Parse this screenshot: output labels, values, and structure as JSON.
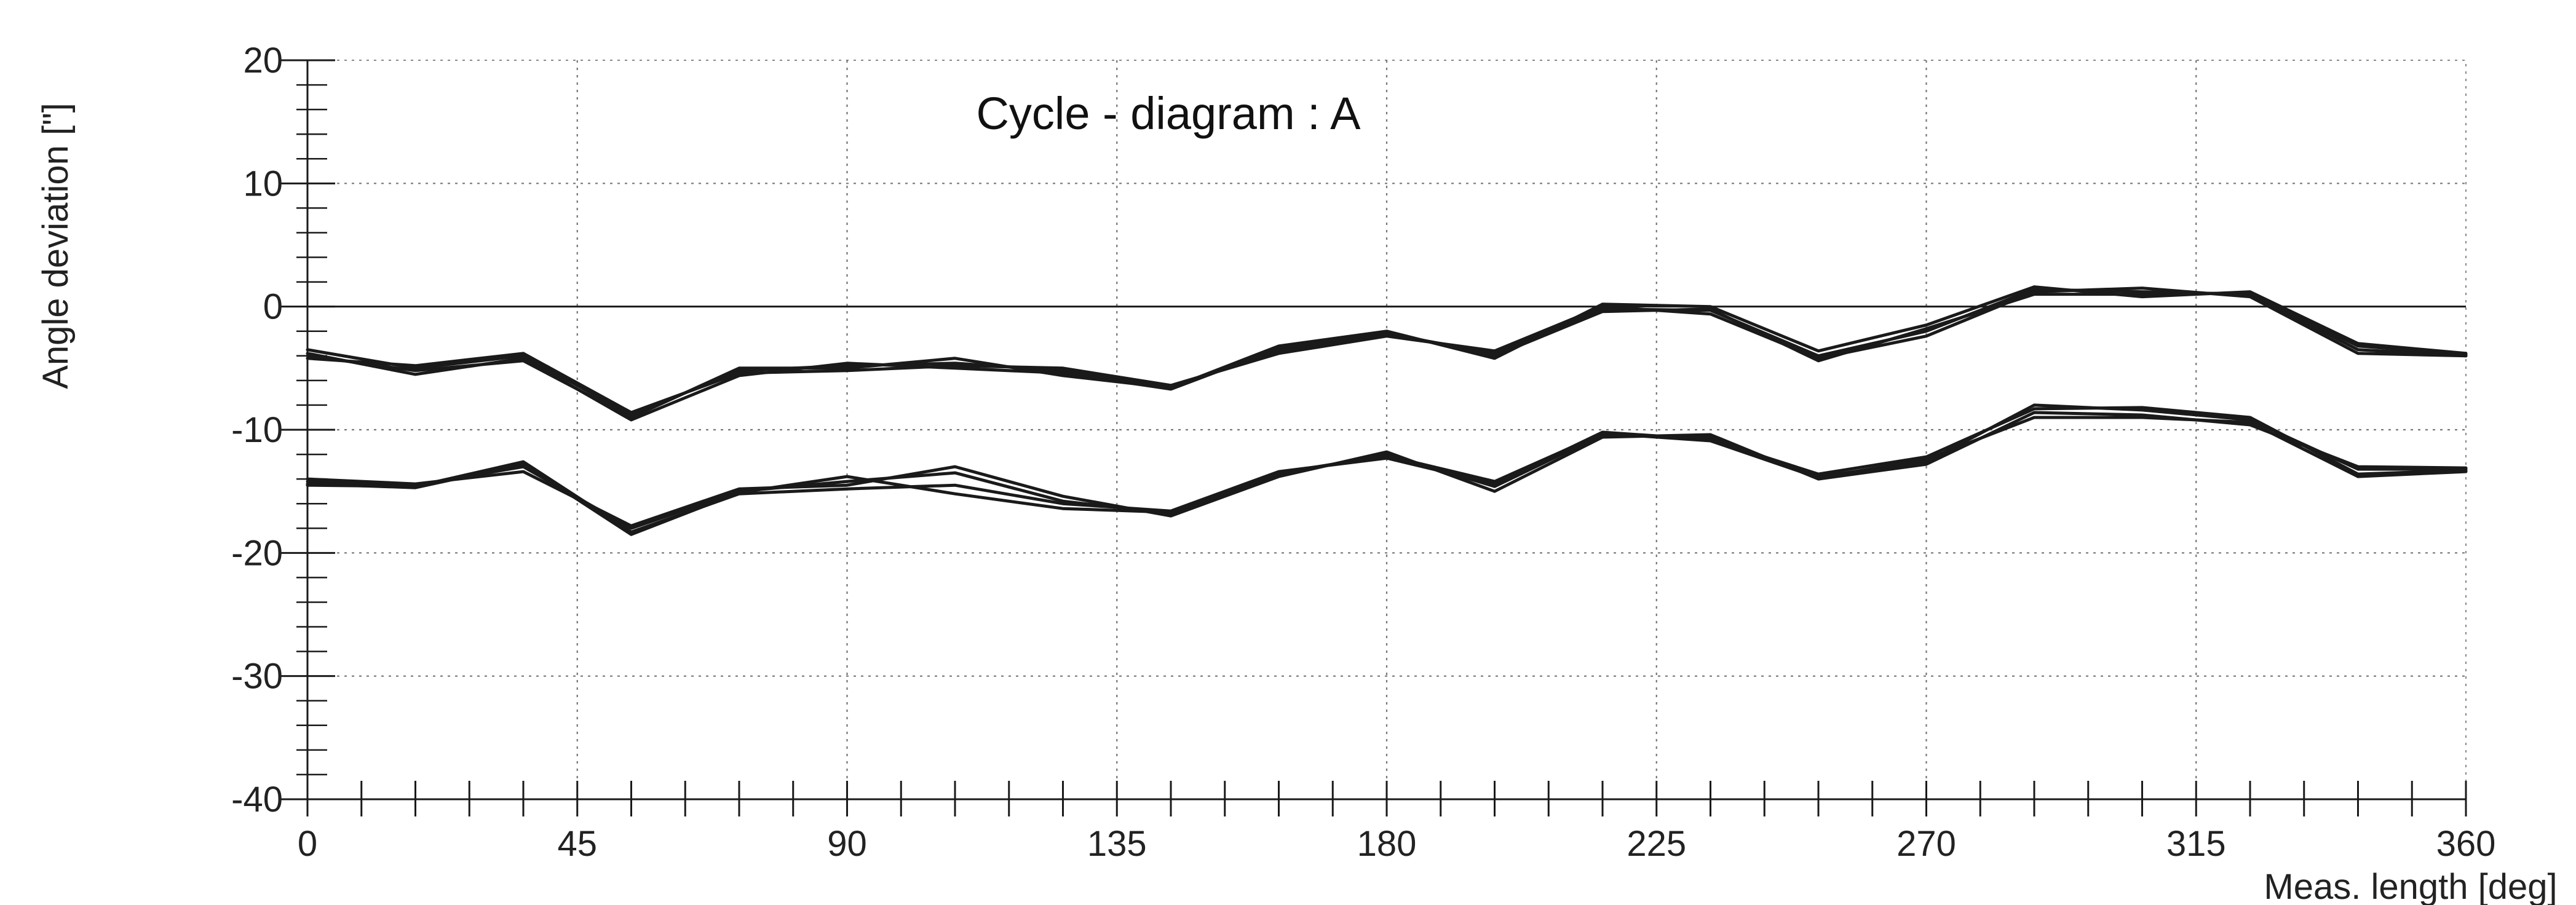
{
  "chart_data": {
    "type": "line",
    "title": "Cycle - diagram : A",
    "xlabel": "Meas. length  [deg]",
    "ylabel": "Angle deviation [\"]",
    "xlim": [
      0,
      360
    ],
    "ylim": [
      -40,
      20
    ],
    "xticks": [
      0,
      45,
      90,
      135,
      180,
      225,
      270,
      315,
      360
    ],
    "yticks": [
      20,
      10,
      0,
      -10,
      -20,
      -30,
      -40
    ],
    "grid": true,
    "zero_line": true,
    "x": [
      0,
      18,
      36,
      54,
      72,
      90,
      108,
      126,
      144,
      162,
      180,
      198,
      216,
      234,
      252,
      270,
      288,
      306,
      324,
      342,
      360
    ],
    "series": [
      {
        "values": [
          -3.5,
          -5.0,
          -4.0,
          -8.8,
          -5.2,
          -4.8,
          -4.6,
          -5.2,
          -6.5,
          -3.6,
          -2.2,
          -3.8,
          -0.2,
          -0.3,
          -4.0,
          -2.0,
          1.4,
          1.2,
          1.0,
          -3.5,
          -4.0
        ]
      },
      {
        "values": [
          -4.0,
          -5.2,
          -4.4,
          -9.0,
          -5.0,
          -5.0,
          -4.2,
          -5.6,
          -6.6,
          -3.2,
          -2.0,
          -4.2,
          0.2,
          0.0,
          -3.6,
          -1.5,
          1.6,
          0.8,
          1.2,
          -3.0,
          -3.8
        ]
      },
      {
        "values": [
          -4.2,
          -4.8,
          -3.8,
          -8.6,
          -5.4,
          -5.2,
          -4.8,
          -5.0,
          -6.4,
          -3.8,
          -2.4,
          -3.6,
          0.0,
          -0.6,
          -4.2,
          -2.4,
          1.2,
          1.5,
          0.8,
          -3.8,
          -4.0
        ]
      },
      {
        "values": [
          -3.8,
          -5.5,
          -4.2,
          -9.2,
          -5.6,
          -4.6,
          -5.0,
          -5.4,
          -6.7,
          -3.4,
          -2.1,
          -4.0,
          -0.4,
          -0.2,
          -4.4,
          -1.8,
          1.0,
          1.0,
          1.1,
          -3.2,
          -3.9
        ]
      },
      {
        "values": [
          -14.2,
          -14.5,
          -13.0,
          -18.0,
          -15.0,
          -14.2,
          -13.5,
          -15.8,
          -16.8,
          -13.6,
          -12.0,
          -14.6,
          -10.4,
          -10.6,
          -13.8,
          -12.6,
          -8.0,
          -8.4,
          -9.2,
          -13.2,
          -13.2
        ]
      },
      {
        "values": [
          -14.5,
          -14.6,
          -12.6,
          -18.3,
          -15.2,
          -14.8,
          -14.5,
          -16.0,
          -16.6,
          -13.4,
          -12.3,
          -14.4,
          -10.2,
          -10.8,
          -13.6,
          -12.2,
          -8.3,
          -8.2,
          -9.0,
          -13.6,
          -13.3
        ]
      },
      {
        "values": [
          -14.0,
          -14.4,
          -13.4,
          -17.8,
          -14.8,
          -14.5,
          -13.0,
          -15.4,
          -17.0,
          -13.8,
          -11.8,
          -15.0,
          -10.6,
          -10.4,
          -14.0,
          -12.8,
          -8.6,
          -8.8,
          -9.6,
          -13.0,
          -13.1
        ]
      },
      {
        "values": [
          -14.4,
          -14.7,
          -12.8,
          -18.5,
          -15.1,
          -13.8,
          -15.2,
          -16.4,
          -16.7,
          -13.5,
          -12.1,
          -14.2,
          -10.3,
          -10.9,
          -13.9,
          -12.4,
          -9.0,
          -9.0,
          -9.4,
          -13.8,
          -13.4
        ]
      }
    ]
  }
}
